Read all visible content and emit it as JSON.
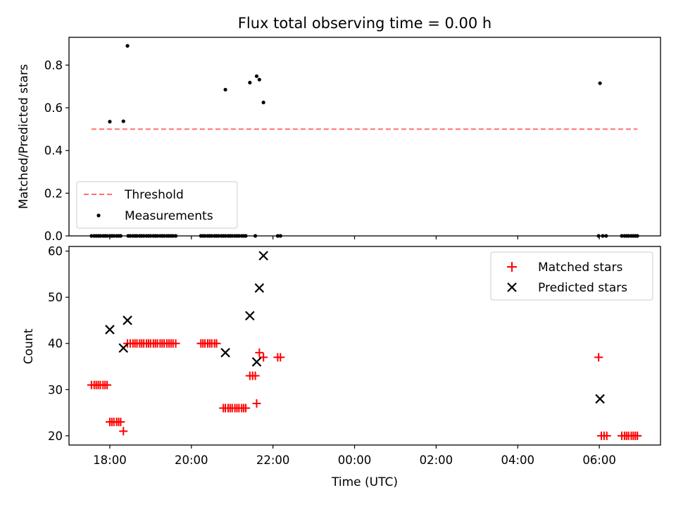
{
  "chart_data": [
    {
      "type": "scatter",
      "title": "Flux total observing time = 0.00 h",
      "xlabel": "",
      "ylabel": "Matched/Predicted stars",
      "xlim": [
        "17:00",
        "07:30"
      ],
      "ylim": [
        0,
        0.93
      ],
      "y_ticks": [
        0.0,
        0.2,
        0.4,
        0.6,
        0.8
      ],
      "y_tick_labels": [
        "0.0",
        "0.2",
        "0.4",
        "0.6",
        "0.8"
      ],
      "x_ticks": [
        "18:00",
        "20:00",
        "22:00",
        "00:00",
        "02:00",
        "04:00",
        "06:00"
      ],
      "show_x_tick_labels": false,
      "legend_position": "lower-left",
      "threshold": {
        "name": "Threshold",
        "value": 0.5,
        "x_start": "17:33",
        "x_end": "06:56",
        "color": "#ff7070",
        "style": "dashed"
      },
      "series": [
        {
          "name": "Measurements",
          "marker": "dot",
          "color": "#000000",
          "points": [
            [
              "18:00",
              0.535
            ],
            [
              "18:20",
              0.537
            ],
            [
              "18:26",
              0.89
            ],
            [
              "20:50",
              0.685
            ],
            [
              "21:26",
              0.718
            ],
            [
              "21:36",
              0.748
            ],
            [
              "21:40",
              0.732
            ],
            [
              "21:46",
              0.625
            ],
            [
              "06:01",
              0.715
            ],
            [
              "17:33",
              0.0
            ],
            [
              "17:37",
              0.0
            ],
            [
              "17:40",
              0.0
            ],
            [
              "17:43",
              0.0
            ],
            [
              "17:46",
              0.0
            ],
            [
              "17:50",
              0.0
            ],
            [
              "17:53",
              0.0
            ],
            [
              "17:56",
              0.0
            ],
            [
              "18:00",
              0.0
            ],
            [
              "18:03",
              0.0
            ],
            [
              "18:06",
              0.0
            ],
            [
              "18:10",
              0.0
            ],
            [
              "18:13",
              0.0
            ],
            [
              "18:16",
              0.0
            ],
            [
              "18:27",
              0.0
            ],
            [
              "18:30",
              0.0
            ],
            [
              "18:34",
              0.0
            ],
            [
              "18:37",
              0.0
            ],
            [
              "18:40",
              0.0
            ],
            [
              "18:44",
              0.0
            ],
            [
              "18:47",
              0.0
            ],
            [
              "18:50",
              0.0
            ],
            [
              "18:54",
              0.0
            ],
            [
              "18:57",
              0.0
            ],
            [
              "19:00",
              0.0
            ],
            [
              "19:04",
              0.0
            ],
            [
              "19:07",
              0.0
            ],
            [
              "19:10",
              0.0
            ],
            [
              "19:14",
              0.0
            ],
            [
              "19:17",
              0.0
            ],
            [
              "19:20",
              0.0
            ],
            [
              "19:24",
              0.0
            ],
            [
              "19:27",
              0.0
            ],
            [
              "19:30",
              0.0
            ],
            [
              "19:33",
              0.0
            ],
            [
              "19:37",
              0.0
            ],
            [
              "20:14",
              0.0
            ],
            [
              "20:17",
              0.0
            ],
            [
              "20:20",
              0.0
            ],
            [
              "20:24",
              0.0
            ],
            [
              "20:27",
              0.0
            ],
            [
              "20:30",
              0.0
            ],
            [
              "20:34",
              0.0
            ],
            [
              "20:37",
              0.0
            ],
            [
              "20:40",
              0.0
            ],
            [
              "20:44",
              0.0
            ],
            [
              "20:47",
              0.0
            ],
            [
              "20:50",
              0.0
            ],
            [
              "20:54",
              0.0
            ],
            [
              "20:57",
              0.0
            ],
            [
              "21:00",
              0.0
            ],
            [
              "21:04",
              0.0
            ],
            [
              "21:07",
              0.0
            ],
            [
              "21:10",
              0.0
            ],
            [
              "21:14",
              0.0
            ],
            [
              "21:17",
              0.0
            ],
            [
              "21:20",
              0.0
            ],
            [
              "21:34",
              0.0
            ],
            [
              "22:07",
              0.0
            ],
            [
              "22:11",
              0.0
            ],
            [
              "05:59",
              0.0
            ],
            [
              "06:05",
              0.0
            ],
            [
              "06:10",
              0.0
            ],
            [
              "06:33",
              0.0
            ],
            [
              "06:37",
              0.0
            ],
            [
              "06:40",
              0.0
            ],
            [
              "06:43",
              0.0
            ],
            [
              "06:47",
              0.0
            ],
            [
              "06:50",
              0.0
            ],
            [
              "06:53",
              0.0
            ],
            [
              "06:56",
              0.0
            ]
          ]
        }
      ]
    },
    {
      "type": "scatter",
      "title": "",
      "xlabel": "Time (UTC)",
      "ylabel": "Count",
      "xlim": [
        "17:00",
        "07:30"
      ],
      "ylim": [
        18,
        61
      ],
      "y_ticks": [
        20,
        30,
        40,
        50,
        60
      ],
      "y_tick_labels": [
        "20",
        "30",
        "40",
        "50",
        "60"
      ],
      "x_ticks": [
        "18:00",
        "20:00",
        "22:00",
        "00:00",
        "02:00",
        "04:00",
        "06:00"
      ],
      "x_tick_labels": [
        "18:00",
        "20:00",
        "22:00",
        "00:00",
        "02:00",
        "04:00",
        "06:00"
      ],
      "legend_position": "upper-right",
      "series": [
        {
          "name": "Matched stars",
          "marker": "plus",
          "color": "#ff0000",
          "points": [
            [
              "17:33",
              31
            ],
            [
              "17:37",
              31
            ],
            [
              "17:40",
              31
            ],
            [
              "17:43",
              31
            ],
            [
              "17:46",
              31
            ],
            [
              "17:50",
              31
            ],
            [
              "17:53",
              31
            ],
            [
              "17:56",
              31
            ],
            [
              "18:00",
              23
            ],
            [
              "18:03",
              23
            ],
            [
              "18:06",
              23
            ],
            [
              "18:10",
              23
            ],
            [
              "18:13",
              23
            ],
            [
              "18:16",
              23
            ],
            [
              "18:20",
              21
            ],
            [
              "18:26",
              40
            ],
            [
              "18:30",
              40
            ],
            [
              "18:34",
              40
            ],
            [
              "18:37",
              40
            ],
            [
              "18:40",
              40
            ],
            [
              "18:44",
              40
            ],
            [
              "18:47",
              40
            ],
            [
              "18:50",
              40
            ],
            [
              "18:54",
              40
            ],
            [
              "18:57",
              40
            ],
            [
              "19:00",
              40
            ],
            [
              "19:04",
              40
            ],
            [
              "19:07",
              40
            ],
            [
              "19:10",
              40
            ],
            [
              "19:14",
              40
            ],
            [
              "19:17",
              40
            ],
            [
              "19:20",
              40
            ],
            [
              "19:24",
              40
            ],
            [
              "19:27",
              40
            ],
            [
              "19:30",
              40
            ],
            [
              "19:33",
              40
            ],
            [
              "19:37",
              40
            ],
            [
              "20:14",
              40
            ],
            [
              "20:17",
              40
            ],
            [
              "20:20",
              40
            ],
            [
              "20:24",
              40
            ],
            [
              "20:27",
              40
            ],
            [
              "20:30",
              40
            ],
            [
              "20:34",
              40
            ],
            [
              "20:37",
              40
            ],
            [
              "20:47",
              26
            ],
            [
              "20:50",
              26
            ],
            [
              "20:54",
              26
            ],
            [
              "20:57",
              26
            ],
            [
              "21:00",
              26
            ],
            [
              "21:04",
              26
            ],
            [
              "21:07",
              26
            ],
            [
              "21:10",
              26
            ],
            [
              "21:14",
              26
            ],
            [
              "21:17",
              26
            ],
            [
              "21:20",
              26
            ],
            [
              "21:26",
              33
            ],
            [
              "21:30",
              33
            ],
            [
              "21:34",
              33
            ],
            [
              "21:36",
              27
            ],
            [
              "21:40",
              38
            ],
            [
              "21:46",
              37
            ],
            [
              "22:07",
              37
            ],
            [
              "22:11",
              37
            ],
            [
              "05:59",
              37
            ],
            [
              "06:03",
              20
            ],
            [
              "06:07",
              20
            ],
            [
              "06:11",
              20
            ],
            [
              "06:33",
              20
            ],
            [
              "06:37",
              20
            ],
            [
              "06:40",
              20
            ],
            [
              "06:43",
              20
            ],
            [
              "06:47",
              20
            ],
            [
              "06:50",
              20
            ],
            [
              "06:53",
              20
            ],
            [
              "06:56",
              20
            ]
          ]
        },
        {
          "name": "Predicted stars",
          "marker": "x",
          "color": "#000000",
          "points": [
            [
              "18:00",
              43
            ],
            [
              "18:20",
              39
            ],
            [
              "18:26",
              45
            ],
            [
              "20:50",
              38
            ],
            [
              "21:26",
              46
            ],
            [
              "21:36",
              36
            ],
            [
              "21:40",
              52
            ],
            [
              "21:46",
              59
            ],
            [
              "06:01",
              28
            ]
          ]
        }
      ]
    }
  ]
}
